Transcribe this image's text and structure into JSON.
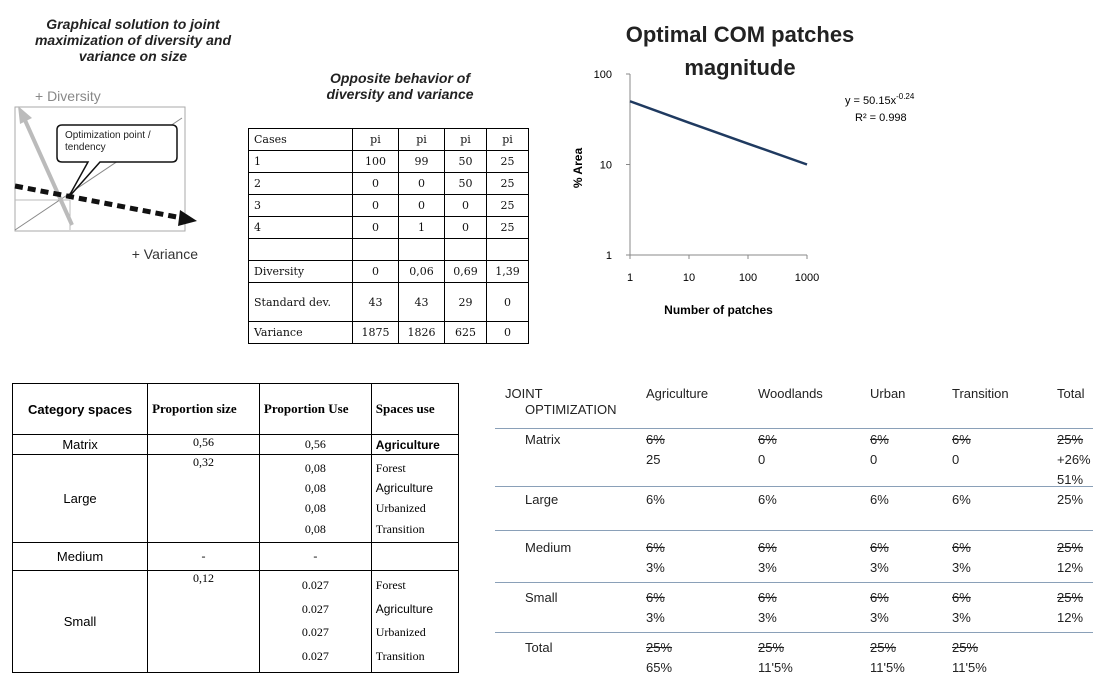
{
  "diagram": {
    "title": "Graphical solution to joint maximization of diversity and variance on size",
    "y_axis": "+ Diversity",
    "x_axis": "+ Variance",
    "callout": "Optimization point / tendency"
  },
  "cases_table": {
    "title": "Opposite behavior of diversity and variance",
    "header": [
      "Cases",
      "pi",
      "pi",
      "pi",
      "pi"
    ],
    "rows": [
      [
        "1",
        "100",
        "99",
        "50",
        "25"
      ],
      [
        "2",
        "0",
        "0",
        "50",
        "25"
      ],
      [
        "3",
        "0",
        "0",
        "0",
        "25"
      ],
      [
        "4",
        "0",
        "1",
        "0",
        "25"
      ],
      [],
      [
        "Diversity",
        "0",
        "0,06",
        "0,69",
        "1,39"
      ],
      [
        "Standard dev.",
        "43",
        "43",
        "29",
        "0"
      ],
      [
        "Variance",
        "1875",
        "1826",
        "625",
        "0"
      ]
    ]
  },
  "chart_data": {
    "type": "line",
    "title": "Optimal COM patches magnitude",
    "x_label": "Number of patches",
    "y_label": "% Area",
    "x": [
      1,
      10,
      100,
      1000
    ],
    "series": [
      {
        "color": "#1f3a60",
        "values": [
          50,
          29,
          17,
          10
        ]
      }
    ],
    "xlim": [
      1,
      1000
    ],
    "ylim": [
      1,
      100
    ],
    "xticks": [
      1,
      10,
      100,
      1000
    ],
    "yticks": [
      1,
      10,
      100
    ],
    "log_x": true,
    "log_y": true,
    "equation": {
      "text": "y = 50.15x",
      "superscript": "-0.24"
    },
    "r_squared": "R² = 0.998"
  },
  "spaces_table": {
    "header": [
      "Category spaces",
      "Proportion size",
      "Proportion Use",
      "Spaces use"
    ],
    "rows": [
      [
        "Matrix",
        "0,56",
        "0,56",
        "Agriculture"
      ],
      [
        "Large",
        "0,32",
        [
          "0,08",
          "0,08",
          "0,08",
          "0,08"
        ],
        [
          "Forest",
          "Agriculture",
          "Urbanized",
          "Transition"
        ]
      ],
      [
        "Medium",
        "-",
        "-",
        []
      ],
      [
        "Small",
        "0,12",
        [
          "0.027",
          "0.027",
          "0.027",
          "0.027"
        ],
        [
          "Forest",
          "Agriculture",
          "Urbanized",
          "Transition"
        ]
      ]
    ]
  },
  "joint_table": {
    "header": [
      "JOINT OPTIMIZATION",
      "Agriculture",
      "Woodlands",
      "Urban",
      "Transition",
      "Total"
    ],
    "rows": [
      [
        "Matrix",
        [
          {
            "text": "6%",
            "struck": true
          },
          "25"
        ],
        [
          {
            "text": "6%",
            "struck": true
          },
          "0"
        ],
        [
          {
            "text": "6%",
            "struck": true
          },
          "0"
        ],
        [
          {
            "text": "6%",
            "struck": true
          },
          "0"
        ],
        [
          {
            "text": "25%",
            "struck": true
          },
          "+26%",
          "51%"
        ]
      ],
      [
        "Large",
        [
          "6%"
        ],
        [
          "6%"
        ],
        [
          "6%"
        ],
        [
          "6%"
        ],
        [
          "25%"
        ]
      ],
      [
        "Medium",
        [
          {
            "text": "6%",
            "struck": true
          },
          "3%"
        ],
        [
          {
            "text": "6%",
            "struck": true
          },
          "3%"
        ],
        [
          {
            "text": "6%",
            "struck": true
          },
          "3%"
        ],
        [
          {
            "text": "6%",
            "struck": true
          },
          "3%"
        ],
        [
          {
            "text": "25%",
            "struck": true
          },
          "12%"
        ]
      ],
      [
        "Small",
        [
          {
            "text": "6%",
            "struck": true
          },
          "3%"
        ],
        [
          {
            "text": "6%",
            "struck": true
          },
          "3%"
        ],
        [
          {
            "text": "6%",
            "struck": true
          },
          "3%"
        ],
        [
          {
            "text": "6%",
            "struck": true
          },
          "3%"
        ],
        [
          {
            "text": "25%",
            "struck": true
          },
          "12%"
        ]
      ],
      [
        "Total",
        [
          {
            "text": "25%",
            "struck": true
          },
          "65%"
        ],
        [
          {
            "text": "25%",
            "struck": true
          },
          "11'5%"
        ],
        [
          {
            "text": "25%",
            "struck": true
          },
          "11'5%"
        ],
        [
          {
            "text": "25%",
            "struck": true
          },
          "11'5%"
        ],
        []
      ]
    ]
  }
}
